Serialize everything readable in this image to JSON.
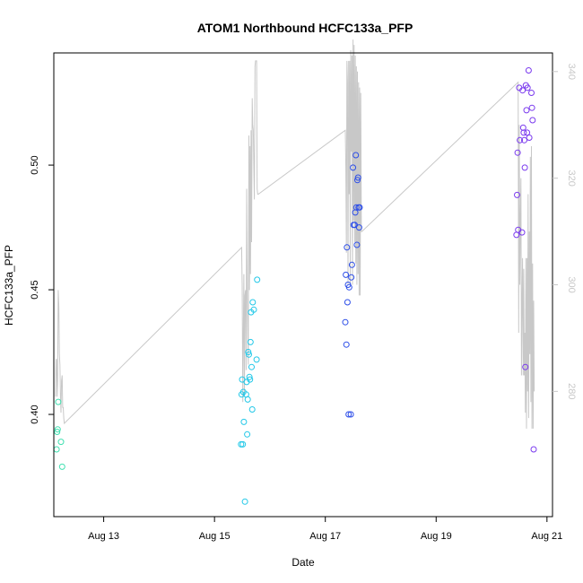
{
  "chart_data": {
    "type": "scatter",
    "title": "ATOM1 Northbound HCFC133a_PFP",
    "xlabel": "Date",
    "ylabel": "HCFC133a_PFP",
    "xlim": [
      12.1,
      21.1
    ],
    "ylim": [
      0.359,
      0.545
    ],
    "y2lim": [
      256.5,
      343.5
    ],
    "grid": false,
    "x_ticks": [
      {
        "value": 13,
        "label": "Aug 13"
      },
      {
        "value": 15,
        "label": "Aug 15"
      },
      {
        "value": 17,
        "label": "Aug 17"
      },
      {
        "value": 19,
        "label": "Aug 19"
      },
      {
        "value": 21,
        "label": "Aug 21"
      }
    ],
    "y_ticks": [
      {
        "value": 0.4,
        "label": "0.40"
      },
      {
        "value": 0.45,
        "label": "0.45"
      },
      {
        "value": 0.5,
        "label": "0.50"
      }
    ],
    "y2_ticks": [
      {
        "value": 280,
        "label": "280"
      },
      {
        "value": 300,
        "label": "300"
      },
      {
        "value": 320,
        "label": "320"
      },
      {
        "value": 340,
        "label": "340"
      }
    ],
    "points": [
      {
        "x": 12.15,
        "y": 0.386,
        "color": "#40e0b0"
      },
      {
        "x": 12.16,
        "y": 0.393,
        "color": "#40e0b0"
      },
      {
        "x": 12.17,
        "y": 0.394,
        "color": "#40e0b0"
      },
      {
        "x": 12.18,
        "y": 0.405,
        "color": "#40e0b0"
      },
      {
        "x": 12.23,
        "y": 0.389,
        "color": "#40e0b0"
      },
      {
        "x": 12.25,
        "y": 0.379,
        "color": "#40e0b0"
      },
      {
        "x": 15.48,
        "y": 0.388,
        "color": "#22c8e8"
      },
      {
        "x": 15.49,
        "y": 0.408,
        "color": "#22c8e8"
      },
      {
        "x": 15.5,
        "y": 0.414,
        "color": "#22c8e8"
      },
      {
        "x": 15.51,
        "y": 0.388,
        "color": "#22c8e8"
      },
      {
        "x": 15.52,
        "y": 0.409,
        "color": "#22c8e8"
      },
      {
        "x": 15.53,
        "y": 0.397,
        "color": "#22c8e8"
      },
      {
        "x": 15.55,
        "y": 0.365,
        "color": "#22c8e8"
      },
      {
        "x": 15.57,
        "y": 0.408,
        "color": "#22c8e8"
      },
      {
        "x": 15.58,
        "y": 0.413,
        "color": "#22c8e8"
      },
      {
        "x": 15.59,
        "y": 0.392,
        "color": "#22c8e8"
      },
      {
        "x": 15.6,
        "y": 0.406,
        "color": "#22c8e8"
      },
      {
        "x": 15.61,
        "y": 0.425,
        "color": "#22c8e8"
      },
      {
        "x": 15.62,
        "y": 0.424,
        "color": "#22c8e8"
      },
      {
        "x": 15.63,
        "y": 0.415,
        "color": "#22c8e8"
      },
      {
        "x": 15.64,
        "y": 0.414,
        "color": "#22c8e8"
      },
      {
        "x": 15.65,
        "y": 0.429,
        "color": "#22c8e8"
      },
      {
        "x": 15.66,
        "y": 0.441,
        "color": "#22c8e8"
      },
      {
        "x": 15.67,
        "y": 0.419,
        "color": "#22c8e8"
      },
      {
        "x": 15.68,
        "y": 0.402,
        "color": "#22c8e8"
      },
      {
        "x": 15.69,
        "y": 0.445,
        "color": "#22c8e8"
      },
      {
        "x": 15.71,
        "y": 0.442,
        "color": "#22c8e8"
      },
      {
        "x": 15.76,
        "y": 0.422,
        "color": "#22c8e8"
      },
      {
        "x": 15.77,
        "y": 0.454,
        "color": "#22c8e8"
      },
      {
        "x": 17.36,
        "y": 0.437,
        "color": "#2d4ee8"
      },
      {
        "x": 17.37,
        "y": 0.456,
        "color": "#2d4ee8"
      },
      {
        "x": 17.38,
        "y": 0.428,
        "color": "#2d4ee8"
      },
      {
        "x": 17.39,
        "y": 0.467,
        "color": "#2d4ee8"
      },
      {
        "x": 17.4,
        "y": 0.445,
        "color": "#2d4ee8"
      },
      {
        "x": 17.41,
        "y": 0.452,
        "color": "#2d4ee8"
      },
      {
        "x": 17.42,
        "y": 0.4,
        "color": "#2d4ee8"
      },
      {
        "x": 17.43,
        "y": 0.451,
        "color": "#2d4ee8"
      },
      {
        "x": 17.46,
        "y": 0.4,
        "color": "#2d4ee8"
      },
      {
        "x": 17.47,
        "y": 0.455,
        "color": "#2d4ee8"
      },
      {
        "x": 17.48,
        "y": 0.46,
        "color": "#2d4ee8"
      },
      {
        "x": 17.5,
        "y": 0.499,
        "color": "#2d4ee8"
      },
      {
        "x": 17.51,
        "y": 0.476,
        "color": "#2d4ee8"
      },
      {
        "x": 17.53,
        "y": 0.476,
        "color": "#2d4ee8"
      },
      {
        "x": 17.54,
        "y": 0.481,
        "color": "#2d4ee8"
      },
      {
        "x": 17.55,
        "y": 0.504,
        "color": "#2d4ee8"
      },
      {
        "x": 17.56,
        "y": 0.483,
        "color": "#2d4ee8"
      },
      {
        "x": 17.57,
        "y": 0.468,
        "color": "#2d4ee8"
      },
      {
        "x": 17.58,
        "y": 0.494,
        "color": "#2d4ee8"
      },
      {
        "x": 17.59,
        "y": 0.495,
        "color": "#2d4ee8"
      },
      {
        "x": 17.6,
        "y": 0.483,
        "color": "#2d4ee8"
      },
      {
        "x": 17.61,
        "y": 0.475,
        "color": "#2d4ee8"
      },
      {
        "x": 17.62,
        "y": 0.483,
        "color": "#2d4ee8"
      },
      {
        "x": 20.45,
        "y": 0.472,
        "color": "#7a3aee"
      },
      {
        "x": 20.46,
        "y": 0.488,
        "color": "#7a3aee"
      },
      {
        "x": 20.47,
        "y": 0.505,
        "color": "#7a3aee"
      },
      {
        "x": 20.48,
        "y": 0.474,
        "color": "#7a3aee"
      },
      {
        "x": 20.5,
        "y": 0.531,
        "color": "#7a3aee"
      },
      {
        "x": 20.51,
        "y": 0.51,
        "color": "#7a3aee"
      },
      {
        "x": 20.55,
        "y": 0.473,
        "color": "#7a3aee"
      },
      {
        "x": 20.56,
        "y": 0.53,
        "color": "#7a3aee"
      },
      {
        "x": 20.57,
        "y": 0.515,
        "color": "#7a3aee"
      },
      {
        "x": 20.58,
        "y": 0.513,
        "color": "#7a3aee"
      },
      {
        "x": 20.59,
        "y": 0.51,
        "color": "#7a3aee"
      },
      {
        "x": 20.6,
        "y": 0.499,
        "color": "#7a3aee"
      },
      {
        "x": 20.61,
        "y": 0.419,
        "color": "#7a3aee"
      },
      {
        "x": 20.62,
        "y": 0.532,
        "color": "#7a3aee"
      },
      {
        "x": 20.63,
        "y": 0.522,
        "color": "#7a3aee"
      },
      {
        "x": 20.64,
        "y": 0.513,
        "color": "#7a3aee"
      },
      {
        "x": 20.65,
        "y": 0.531,
        "color": "#7a3aee"
      },
      {
        "x": 20.67,
        "y": 0.538,
        "color": "#7a3aee"
      },
      {
        "x": 20.68,
        "y": 0.511,
        "color": "#7a3aee"
      },
      {
        "x": 20.72,
        "y": 0.529,
        "color": "#7a3aee"
      },
      {
        "x": 20.73,
        "y": 0.523,
        "color": "#7a3aee"
      },
      {
        "x": 20.74,
        "y": 0.518,
        "color": "#7a3aee"
      },
      {
        "x": 20.76,
        "y": 0.386,
        "color": "#7a3aee"
      }
    ],
    "line_series": {
      "name": "secondary axis (gray line)",
      "color": "#c8c8c8",
      "x": [
        12.13,
        12.14,
        12.15,
        12.16,
        12.17,
        12.18,
        12.19,
        12.2,
        12.21,
        12.22,
        12.23,
        12.24,
        12.25,
        12.26,
        12.27,
        12.28,
        12.29,
        15.49,
        15.5,
        15.51,
        15.52,
        15.53,
        15.54,
        15.55,
        15.56,
        15.57,
        15.58,
        15.59,
        15.6,
        15.61,
        15.62,
        15.63,
        15.64,
        15.65,
        15.66,
        15.67,
        15.68,
        15.69,
        15.7,
        15.71,
        15.72,
        15.73,
        15.74,
        15.75,
        15.76,
        15.77,
        15.78,
        15.79,
        17.36,
        17.37,
        17.38,
        17.39,
        17.4,
        17.41,
        17.42,
        17.43,
        17.44,
        17.45,
        17.46,
        17.47,
        17.48,
        17.49,
        17.5,
        17.51,
        17.52,
        17.53,
        17.54,
        17.55,
        17.56,
        17.57,
        17.58,
        17.59,
        17.6,
        17.61,
        17.62,
        17.63,
        17.64,
        17.65,
        17.66,
        20.48,
        20.49,
        20.5,
        20.51,
        20.52,
        20.53,
        20.54,
        20.55,
        20.56,
        20.57,
        20.58,
        20.59,
        20.6,
        20.61,
        20.62,
        20.63,
        20.64,
        20.65,
        20.66,
        20.67,
        20.68,
        20.69,
        20.7,
        20.71,
        20.72,
        20.73,
        20.74,
        20.75,
        20.76,
        20.77
      ],
      "y": [
        279,
        286,
        286,
        279,
        282,
        299,
        296,
        287,
        285,
        279,
        276,
        282,
        283,
        277,
        277,
        275,
        274,
        307,
        300,
        278,
        291,
        302,
        279,
        298,
        299,
        284,
        318,
        300,
        290,
        285,
        328,
        299,
        326,
        302,
        329,
        308,
        335,
        330,
        329,
        322,
        316,
        341,
        342,
        342,
        342,
        318,
        317,
        317,
        329,
        322,
        306,
        342,
        338,
        300,
        342,
        317,
        342,
        300,
        344,
        325,
        343,
        300,
        346,
        312,
        345,
        308,
        343,
        304,
        341,
        300,
        340,
        302,
        338,
        298,
        337,
        298,
        336,
        310,
        310,
        338,
        291,
        330,
        300,
        312,
        320,
        283,
        296,
        305,
        283,
        303,
        283,
        291,
        276,
        305,
        273,
        305,
        280,
        317,
        275,
        310,
        287,
        324,
        278,
        326,
        273,
        304,
        273,
        297,
        280
      ]
    },
    "connectors": [
      {
        "x": [
          12.29,
          15.49
        ],
        "y2": [
          274,
          307
        ]
      },
      {
        "x": [
          15.79,
          17.36
        ],
        "y2": [
          317,
          329
        ]
      },
      {
        "x": [
          17.66,
          20.48
        ],
        "y2": [
          310,
          338
        ]
      }
    ]
  }
}
